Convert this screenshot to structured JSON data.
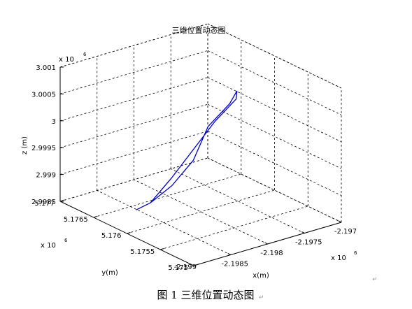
{
  "chart_data": {
    "type": "line",
    "title": "三维位置动态图",
    "xlabel": "x(m)",
    "ylabel": "y(m)",
    "zlabel": "z (m)",
    "x_multiplier": "x 10",
    "y_multiplier": "x 10",
    "z_multiplier": "x 10",
    "multiplier_exp": "6",
    "x_ticks": [
      "-2.1985",
      "-2.198",
      "-2.1975",
      "-2.197"
    ],
    "x_tick_values": [
      -2.1985,
      -2.198,
      -2.1975,
      -2.197
    ],
    "x_corner_label": "-2.199",
    "xlim": [
      -2.199,
      -2.197
    ],
    "y_ticks": [
      "5.177",
      "5.1765",
      "5.176",
      "5.1755",
      "5.175"
    ],
    "y_tick_values": [
      5.177,
      5.1765,
      5.176,
      5.1755,
      5.175
    ],
    "ylim": [
      5.175,
      5.177
    ],
    "z_ticks": [
      "3.001",
      "3.0005",
      "3",
      "2.9995",
      "2.999",
      "2.9985"
    ],
    "z_tick_values": [
      3.001,
      3.0005,
      3.0,
      2.9995,
      2.999,
      2.9985
    ],
    "zlim": [
      2.9985,
      3.001
    ],
    "grid": true,
    "series_color": "#0000cc",
    "series": [
      {
        "points": [
          {
            "x": -2.1976,
            "y": 5.1759,
            "z": 3.00065
          },
          {
            "x": -2.1977,
            "y": 5.1759,
            "z": 3.00045
          },
          {
            "x": -2.1979,
            "y": 5.176,
            "z": 3.00005
          },
          {
            "x": -2.1981,
            "y": 5.176,
            "z": 2.9995
          },
          {
            "x": -2.1983,
            "y": 5.1761,
            "z": 2.99905
          },
          {
            "x": -2.1985,
            "y": 5.1762,
            "z": 2.99875
          },
          {
            "x": -2.1986,
            "y": 5.1763,
            "z": 2.9986
          },
          {
            "x": -2.1985,
            "y": 5.1762,
            "z": 2.99875
          },
          {
            "x": -2.1983,
            "y": 5.1761,
            "z": 2.9992
          },
          {
            "x": -2.1981,
            "y": 5.176,
            "z": 2.9997
          },
          {
            "x": -2.1979,
            "y": 5.1759,
            "z": 3.0002
          },
          {
            "x": -2.1977,
            "y": 5.1758,
            "z": 3.0006
          },
          {
            "x": -2.1976,
            "y": 5.1759,
            "z": 3.00065
          }
        ]
      }
    ]
  },
  "caption": {
    "text": "图 1  三维位置动态图",
    "mark": "↵"
  },
  "page_mark": "↵"
}
